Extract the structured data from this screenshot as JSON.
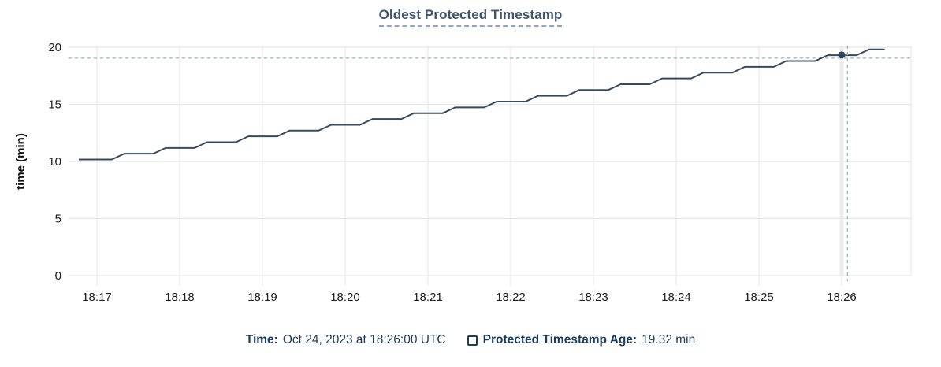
{
  "title": "Oldest Protected Timestamp",
  "y_axis_label": "time (min)",
  "tooltip_legend": {
    "time_label": "Time:",
    "time_value": "Oct 24, 2023 at 18:26:00 UTC",
    "series_label": "Protected Timestamp Age:",
    "series_value": "19.32 min",
    "checkbox_icon": "legend-checkbox-unchecked"
  },
  "colors": {
    "line": "#384a5f",
    "dot": "#2d4257",
    "grid": "#e8e8e8",
    "hover_band": "#ececec",
    "crosshair": "#a3b9c6",
    "tick_text": "#1d1d1d",
    "axis_title_text": "#111111",
    "title_text": "#41566e",
    "legend_text": "#1b3c5e",
    "background": "#ffffff"
  },
  "chart_data": {
    "type": "line",
    "title": "Oldest Protected Timestamp",
    "xlabel": "",
    "ylabel": "time (min)",
    "grid": true,
    "ylim": [
      0,
      20
    ],
    "y_ticks": [
      0,
      5,
      10,
      15,
      20
    ],
    "x_tick_labels": [
      "18:17",
      "18:18",
      "18:19",
      "18:20",
      "18:21",
      "18:22",
      "18:23",
      "18:24",
      "18:25",
      "18:26"
    ],
    "x_unit": "minutes after 18:17",
    "xlim_minutes": [
      -0.343,
      9.848
    ],
    "series": [
      {
        "name": "Protected Timestamp Age",
        "points": [
          [
            -0.22,
            10.17
          ],
          [
            0.18,
            10.17
          ],
          [
            0.33,
            10.68
          ],
          [
            0.68,
            10.68
          ],
          [
            0.83,
            11.18
          ],
          [
            1.18,
            11.18
          ],
          [
            1.33,
            11.69
          ],
          [
            1.68,
            11.69
          ],
          [
            1.83,
            12.2
          ],
          [
            2.18,
            12.2
          ],
          [
            2.33,
            12.71
          ],
          [
            2.68,
            12.71
          ],
          [
            2.83,
            13.21
          ],
          [
            3.18,
            13.21
          ],
          [
            3.33,
            13.72
          ],
          [
            3.68,
            13.72
          ],
          [
            3.83,
            14.23
          ],
          [
            4.18,
            14.23
          ],
          [
            4.33,
            14.73
          ],
          [
            4.68,
            14.73
          ],
          [
            4.83,
            15.24
          ],
          [
            5.18,
            15.24
          ],
          [
            5.33,
            15.75
          ],
          [
            5.68,
            15.75
          ],
          [
            5.83,
            16.26
          ],
          [
            6.18,
            16.26
          ],
          [
            6.33,
            16.76
          ],
          [
            6.68,
            16.76
          ],
          [
            6.83,
            17.27
          ],
          [
            7.18,
            17.27
          ],
          [
            7.33,
            17.78
          ],
          [
            7.68,
            17.78
          ],
          [
            7.83,
            18.28
          ],
          [
            8.18,
            18.28
          ],
          [
            8.33,
            18.79
          ],
          [
            8.68,
            18.79
          ],
          [
            8.83,
            19.3
          ],
          [
            9.18,
            19.3
          ],
          [
            9.33,
            19.81
          ],
          [
            9.52,
            19.81
          ]
        ]
      }
    ],
    "hover_point": {
      "x_minutes": 9.0,
      "x_label": "18:26",
      "value": 19.32,
      "time": "Oct 24, 2023 at 18:26:00 UTC",
      "crosshair_x_minutes": 9.07,
      "crosshair_y_value": 19.05
    },
    "legend_position": "bottom-center"
  }
}
